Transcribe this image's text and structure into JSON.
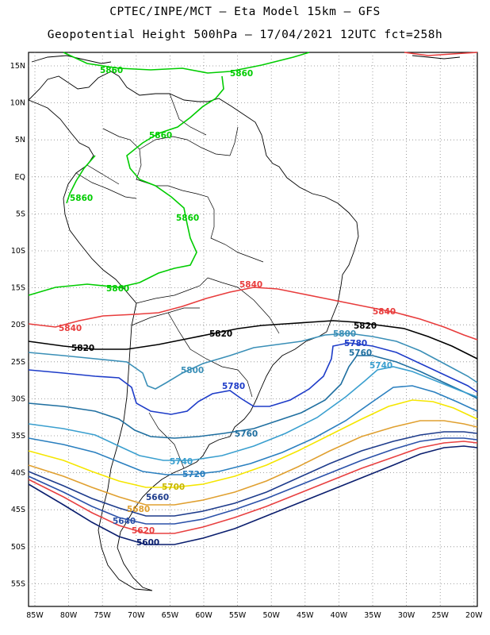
{
  "title": {
    "line1": "CPTEC/INPE/MCT –  Eta Model 15km – GFS",
    "line2": "Geopotential Height 500hPa – 17/04/2021 12UTC fct=258h"
  },
  "axes": {
    "lat_labels": [
      "15N",
      "10N",
      "5N",
      "EQ",
      "5S",
      "10S",
      "15S",
      "20S",
      "25S",
      "30S",
      "35S",
      "40S",
      "45S",
      "50S",
      "55S"
    ],
    "lon_labels": [
      "85W",
      "80W",
      "75W",
      "70W",
      "65W",
      "60W",
      "55W",
      "50W",
      "45W",
      "40W",
      "35W",
      "30W",
      "25W",
      "20W"
    ],
    "grid": "dotted"
  },
  "contours": [
    {
      "level": "5860",
      "color": "#00cc00"
    },
    {
      "level": "5840",
      "color": "#e83c3c"
    },
    {
      "level": "5820",
      "color": "#000000"
    },
    {
      "level": "5800",
      "color": "#3a8fb7"
    },
    {
      "level": "5780",
      "color": "#1e3cc8"
    },
    {
      "level": "5760",
      "color": "#1f6fa0"
    },
    {
      "level": "5740",
      "color": "#3a9fcf"
    },
    {
      "level": "5720",
      "color": "#2a7fbf"
    },
    {
      "level": "5700",
      "color": "#f5e600"
    },
    {
      "level": "5680",
      "color": "#e0a030"
    },
    {
      "level": "5660",
      "color": "#1e3c8c"
    },
    {
      "level": "5640",
      "color": "#2a50a8"
    },
    {
      "level": "5620",
      "color": "#e84040"
    },
    {
      "level": "5600",
      "color": "#0a1e6e"
    }
  ]
}
